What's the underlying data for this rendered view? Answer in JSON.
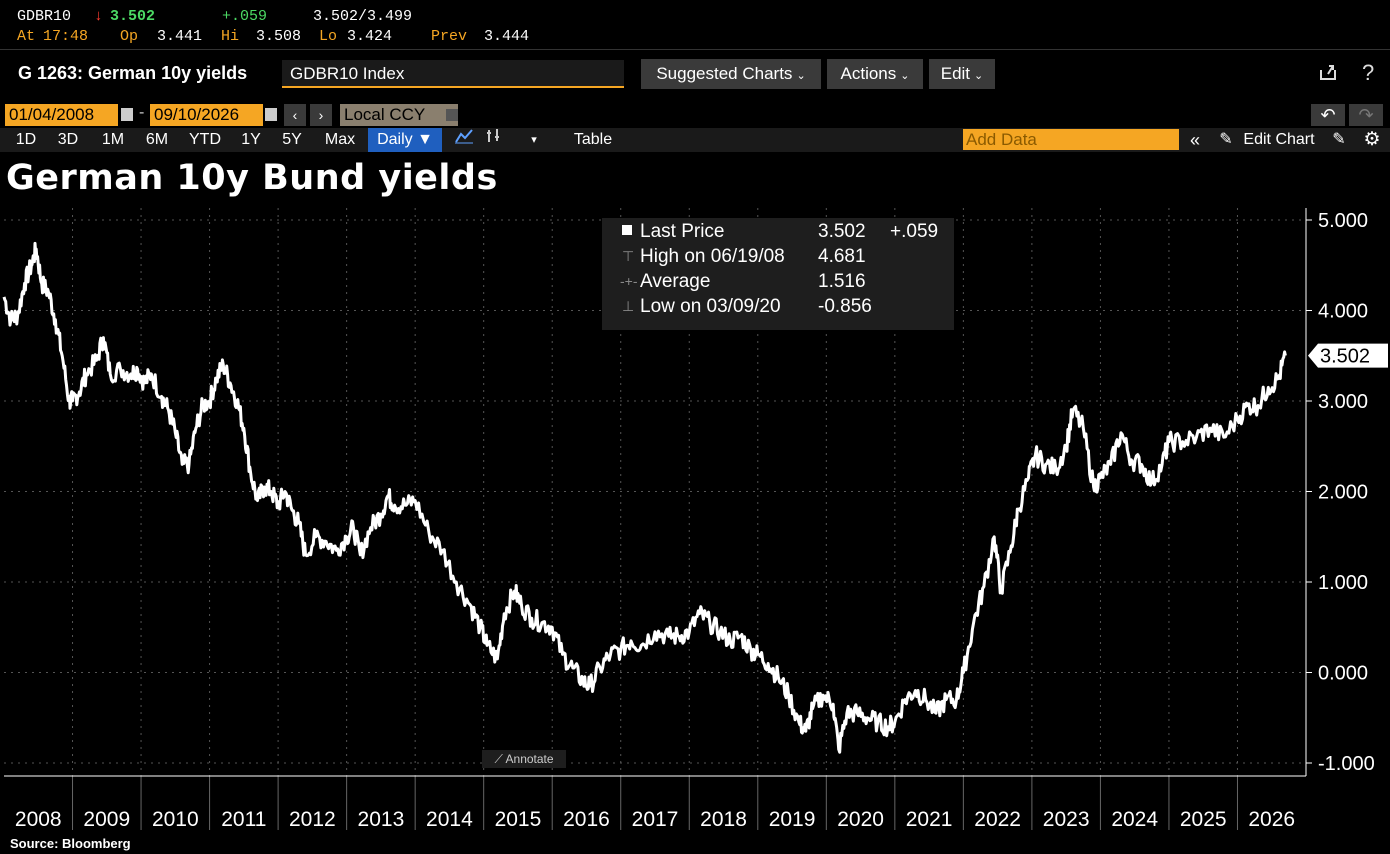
{
  "quote": {
    "ticker": "GDBR10",
    "arrow": "↓",
    "last": "3.502",
    "change": "+.059",
    "bid_ask": "3.502/3.499",
    "at_label": "At",
    "time": "17:48",
    "open_label": "Op",
    "open": "3.441",
    "high_label": "Hi",
    "high": "3.508",
    "low_label": "Lo",
    "low": "3.424",
    "prev_label": "Prev",
    "prev": "3.444"
  },
  "command": {
    "title": "G 1263: German 10y yields",
    "security": "GDBR10 Index",
    "menus": [
      "Suggested Charts",
      "Actions",
      "Edit"
    ]
  },
  "dates": {
    "start": "01/04/2008",
    "end": "09/10/2026",
    "dash": "-",
    "currency": "Local CCY"
  },
  "range": {
    "buttons": [
      "1D",
      "3D",
      "1M",
      "6M",
      "YTD",
      "1Y",
      "5Y",
      "Max"
    ],
    "frequency": "Daily ▼",
    "table": "Table",
    "add_data_placeholder": "Add Data",
    "edit_chart": "Edit Chart"
  },
  "legend": {
    "rows": [
      {
        "label": "Last Price",
        "value": "3.502",
        "extra": "+.059"
      },
      {
        "label": "High on 06/19/08",
        "value": "4.681",
        "extra": ""
      },
      {
        "label": "Average",
        "value": "1.516",
        "extra": ""
      },
      {
        "label": "Low on 03/09/20",
        "value": "-0.856",
        "extra": ""
      }
    ]
  },
  "annotate_label": "Annotate",
  "last_value_label": "3.502",
  "source": "Source: Bloomberg",
  "colors": {
    "accent": "#f5a623",
    "line": "#ffffff",
    "up": "#4cd964",
    "down": "#ff3b30",
    "background": "#000000"
  },
  "chart_data": {
    "type": "line",
    "title": "German 10y Bund yields",
    "xlabel": "",
    "ylabel": "",
    "x_ticks": [
      "2008",
      "2009",
      "2010",
      "2011",
      "2012",
      "2013",
      "2014",
      "2015",
      "2016",
      "2017",
      "2018",
      "2019",
      "2020",
      "2021",
      "2022",
      "2023",
      "2024",
      "2025",
      "2026"
    ],
    "y_ticks": [
      "5.000",
      "4.000",
      "3.000",
      "2.000",
      "1.000",
      "0.000",
      "-1.000"
    ],
    "xlim": [
      2008.0,
      2027.0
    ],
    "ylim": [
      -1.2,
      5.1
    ],
    "grid": true,
    "series": [
      {
        "name": "Last Price",
        "x": [
          2008.0,
          2008.1,
          2008.2,
          2008.3,
          2008.4,
          2008.47,
          2008.55,
          2008.65,
          2008.75,
          2008.85,
          2008.95,
          2009.0,
          2009.1,
          2009.2,
          2009.35,
          2009.45,
          2009.55,
          2009.7,
          2009.85,
          2009.95,
          2010.05,
          2010.15,
          2010.3,
          2010.4,
          2010.5,
          2010.6,
          2010.7,
          2010.8,
          2010.9,
          2011.0,
          2011.1,
          2011.2,
          2011.3,
          2011.4,
          2011.5,
          2011.6,
          2011.7,
          2011.8,
          2011.9,
          2012.0,
          2012.1,
          2012.2,
          2012.3,
          2012.4,
          2012.55,
          2012.7,
          2012.85,
          2013.0,
          2013.1,
          2013.2,
          2013.35,
          2013.5,
          2013.6,
          2013.7,
          2013.85,
          2014.0,
          2014.2,
          2014.4,
          2014.6,
          2014.8,
          2014.95,
          2015.05,
          2015.2,
          2015.3,
          2015.45,
          2015.55,
          2015.7,
          2015.85,
          2016.0,
          2016.15,
          2016.3,
          2016.45,
          2016.55,
          2016.7,
          2016.85,
          2017.0,
          2017.15,
          2017.3,
          2017.5,
          2017.7,
          2017.85,
          2018.0,
          2018.15,
          2018.3,
          2018.45,
          2018.6,
          2018.75,
          2018.9,
          2019.0,
          2019.15,
          2019.3,
          2019.45,
          2019.6,
          2019.7,
          2019.8,
          2019.95,
          2020.1,
          2020.18,
          2020.3,
          2020.45,
          2020.6,
          2020.75,
          2020.9,
          2021.0,
          2021.15,
          2021.3,
          2021.45,
          2021.6,
          2021.75,
          2021.9,
          2022.0,
          2022.15,
          2022.3,
          2022.45,
          2022.55,
          2022.7,
          2022.8,
          2022.95,
          2023.05,
          2023.2,
          2023.35,
          2023.5,
          2023.6,
          2023.75,
          2023.9,
          2024.0,
          2024.15,
          2024.3,
          2024.45,
          2024.6,
          2024.75,
          2024.9,
          2025.0,
          2025.2,
          2025.4,
          2025.6,
          2025.8,
          2026.0,
          2026.15,
          2026.3,
          2026.45,
          2026.6,
          2026.7
        ],
        "y": [
          4.15,
          3.9,
          3.95,
          4.3,
          4.5,
          4.68,
          4.3,
          4.2,
          3.9,
          3.5,
          3.0,
          3.0,
          3.1,
          3.3,
          3.45,
          3.7,
          3.3,
          3.35,
          3.3,
          3.35,
          3.2,
          3.3,
          3.05,
          2.9,
          2.65,
          2.3,
          2.3,
          2.7,
          2.95,
          3.0,
          3.25,
          3.4,
          3.2,
          3.0,
          2.7,
          2.2,
          1.9,
          2.05,
          2.0,
          1.85,
          2.0,
          1.8,
          1.65,
          1.3,
          1.5,
          1.45,
          1.35,
          1.5,
          1.6,
          1.3,
          1.6,
          1.75,
          1.95,
          1.85,
          1.85,
          1.9,
          1.55,
          1.35,
          1.0,
          0.75,
          0.5,
          0.3,
          0.15,
          0.65,
          0.9,
          0.75,
          0.6,
          0.55,
          0.5,
          0.2,
          0.05,
          -0.1,
          -0.15,
          0.05,
          0.2,
          0.25,
          0.35,
          0.3,
          0.45,
          0.4,
          0.4,
          0.45,
          0.65,
          0.55,
          0.45,
          0.35,
          0.4,
          0.25,
          0.2,
          0.1,
          -0.05,
          -0.25,
          -0.55,
          -0.65,
          -0.4,
          -0.25,
          -0.35,
          -0.85,
          -0.45,
          -0.45,
          -0.5,
          -0.55,
          -0.6,
          -0.55,
          -0.3,
          -0.2,
          -0.3,
          -0.45,
          -0.3,
          -0.3,
          0.0,
          0.55,
          0.95,
          1.5,
          0.9,
          1.4,
          1.8,
          2.15,
          2.4,
          2.3,
          2.25,
          2.5,
          2.9,
          2.7,
          2.05,
          2.15,
          2.3,
          2.65,
          2.35,
          2.3,
          2.1,
          2.3,
          2.55,
          2.55,
          2.6,
          2.7,
          2.6,
          2.8,
          2.95,
          2.95,
          3.15,
          3.25,
          3.502
        ]
      }
    ]
  }
}
